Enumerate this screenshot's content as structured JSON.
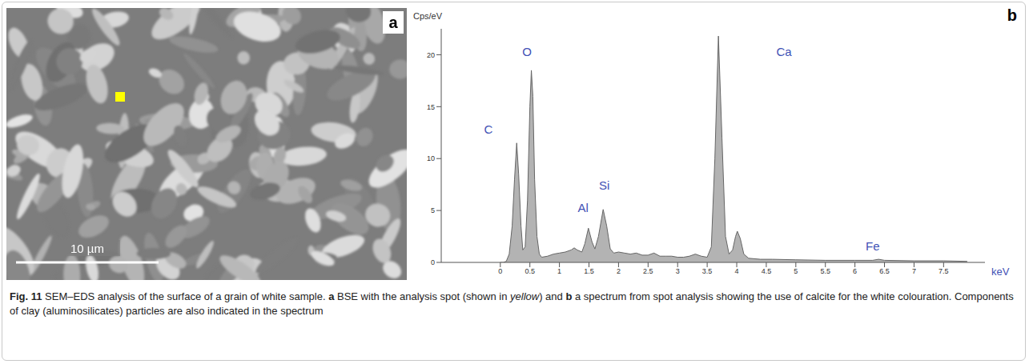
{
  "panel_a": {
    "letter": "a",
    "scale_bar": "10 µm"
  },
  "panel_b": {
    "letter": "b"
  },
  "chart_data": {
    "type": "area",
    "x_label": "keV",
    "y_label": "Cps/eV",
    "x": [
      0,
      0.05,
      0.1,
      0.15,
      0.2,
      0.24,
      0.277,
      0.31,
      0.35,
      0.38,
      0.42,
      0.46,
      0.5,
      0.525,
      0.55,
      0.58,
      0.62,
      0.66,
      0.7,
      0.8,
      0.9,
      1.0,
      1.1,
      1.2,
      1.25,
      1.3,
      1.38,
      1.43,
      1.49,
      1.55,
      1.6,
      1.66,
      1.74,
      1.8,
      1.86,
      1.92,
      2.0,
      2.1,
      2.2,
      2.3,
      2.4,
      2.5,
      2.6,
      2.7,
      2.8,
      2.9,
      3.0,
      3.1,
      3.2,
      3.3,
      3.4,
      3.5,
      3.57,
      3.63,
      3.69,
      3.75,
      3.81,
      3.87,
      3.93,
      3.98,
      4.01,
      4.06,
      4.12,
      4.2,
      4.4,
      4.6,
      5.0,
      5.5,
      6.0,
      6.3,
      6.4,
      6.5,
      7.0,
      7.5,
      7.9
    ],
    "values": [
      0,
      0,
      0.1,
      0.8,
      3.5,
      8,
      11.5,
      8.5,
      3.5,
      1.2,
      1.5,
      6,
      15,
      18.5,
      16,
      8,
      2.5,
      0.8,
      0.5,
      0.6,
      0.8,
      0.9,
      1.0,
      1.2,
      1.4,
      1.2,
      1.0,
      1.8,
      3.3,
      2.0,
      1.3,
      2.5,
      5.1,
      3.5,
      1.3,
      0.9,
      1.0,
      0.9,
      0.8,
      0.9,
      0.7,
      0.7,
      0.9,
      0.6,
      0.6,
      0.6,
      0.5,
      0.5,
      0.6,
      0.8,
      0.6,
      0.5,
      1.5,
      10,
      21.8,
      12,
      2.5,
      0.8,
      1.2,
      2.5,
      3.0,
      2.3,
      0.8,
      0.4,
      0.3,
      0.3,
      0.25,
      0.2,
      0.2,
      0.2,
      0.3,
      0.2,
      0.15,
      0.15,
      0.1
    ],
    "color": "#b3b3b3",
    "xlim": [
      -1.0,
      8.2
    ],
    "xticks": [
      0,
      0.5,
      1,
      1.5,
      2,
      2.5,
      3,
      3.5,
      4,
      4.5,
      5,
      5.5,
      6,
      6.5,
      7,
      7.5
    ],
    "ylim": [
      0,
      22.5
    ],
    "yticks": [
      0,
      5,
      10,
      15,
      20
    ],
    "grid": false,
    "annotations": [
      {
        "text": "C",
        "x": -0.2,
        "y": 12.8
      },
      {
        "text": "O",
        "x": 0.45,
        "y": 20.3
      },
      {
        "text": "Al",
        "x": 1.4,
        "y": 5.3
      },
      {
        "text": "Si",
        "x": 1.76,
        "y": 7.4
      },
      {
        "text": "Ca",
        "x": 4.8,
        "y": 20.3
      },
      {
        "text": "Fe",
        "x": 6.3,
        "y": 1.6
      }
    ]
  },
  "caption": {
    "segments": [
      "Fig. 11",
      " SEM–EDS analysis of the surface of a grain of white sample. ",
      "a",
      " BSE with the analysis spot (shown in ",
      "yellow",
      ") and ",
      "b",
      " a spectrum from spot analysis showing the use of calcite for the white colouration. Components of clay (aluminosilicates) particles are also indicated in the spectrum"
    ]
  }
}
